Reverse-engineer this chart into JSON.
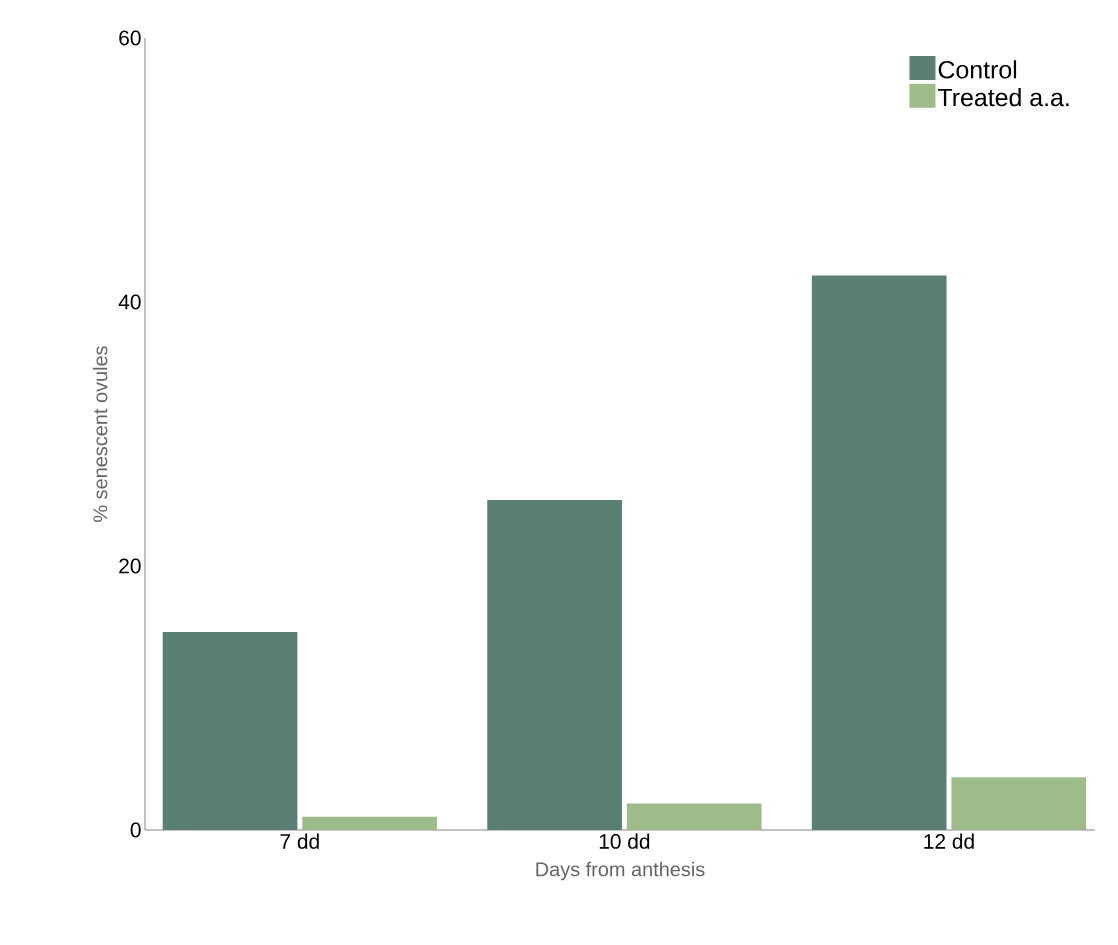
{
  "chart_data": {
    "type": "bar",
    "xlabel": "Days from anthesis",
    "ylabel": "% senescent ovules",
    "categories": [
      "7 dd",
      "10 dd",
      "12 dd"
    ],
    "series": [
      {
        "name": "Control",
        "color": "#5a7f74",
        "values": [
          15,
          25,
          42
        ]
      },
      {
        "name": "Treated a.a.",
        "color": "#9dbc8a",
        "values": [
          1,
          2,
          4
        ]
      }
    ],
    "ylim": [
      0,
      60
    ],
    "yticks": [
      0,
      20,
      40,
      60
    ],
    "grid": false,
    "legend": "top right"
  }
}
